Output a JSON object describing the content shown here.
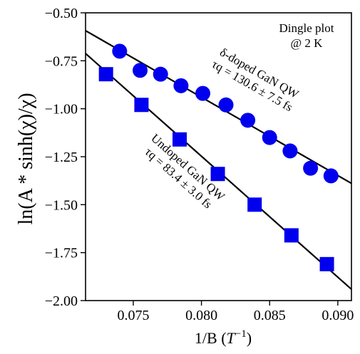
{
  "chart_data": {
    "type": "scatter",
    "title": "",
    "xlabel": {
      "main": "1/B (",
      "var": "T",
      "exp": "−1",
      "tail": ")"
    },
    "ylabel": "ln(A * sinh(χ)/χ)",
    "xlim": [
      0.0715,
      0.091
    ],
    "ylim": [
      -2.0,
      -0.5
    ],
    "x_ticks": [
      0.075,
      0.08,
      0.085,
      0.09
    ],
    "x_tick_labels": [
      "0.075",
      "0.080",
      "0.085",
      "0.090"
    ],
    "y_ticks": [
      -0.5,
      -0.75,
      -1.0,
      -1.25,
      -1.5,
      -1.75,
      -2.0
    ],
    "y_tick_labels": [
      "−0.50",
      "−0.75",
      "−1.00",
      "−1.25",
      "−1.50",
      "−1.75",
      "−2.00"
    ],
    "grid": false,
    "series": [
      {
        "marker": "circle",
        "color": "#0000ee",
        "x": [
          0.074,
          0.0755,
          0.077,
          0.0785,
          0.0801,
          0.0818,
          0.0834,
          0.085,
          0.0865,
          0.088,
          0.0895
        ],
        "y": [
          -0.7,
          -0.8,
          -0.82,
          -0.88,
          -0.92,
          -0.98,
          -1.06,
          -1.15,
          -1.22,
          -1.31,
          -1.35
        ],
        "fit_line": {
          "x": [
            0.0715,
            0.091
          ],
          "y": [
            -0.593,
            -1.389
          ]
        },
        "label_line1": "δ-doped GaN QW",
        "label_line2": "τq = 130.6 ± 7.5 fs"
      },
      {
        "marker": "square",
        "color": "#0000ee",
        "x": [
          0.073,
          0.0756,
          0.0784,
          0.0812,
          0.0839,
          0.0866,
          0.0892
        ],
        "y": [
          -0.82,
          -0.98,
          -1.16,
          -1.34,
          -1.5,
          -1.66,
          -1.81
        ],
        "fit_line": {
          "x": [
            0.0715,
            0.091
          ],
          "y": [
            -0.712,
            -1.941
          ]
        },
        "label_line1": "Undoped GaN QW",
        "label_line2": "τq = 83.4 ± 3.0 fs"
      }
    ],
    "annotation": {
      "line1": "Dingle plot",
      "line2": "@ 2 K"
    }
  }
}
